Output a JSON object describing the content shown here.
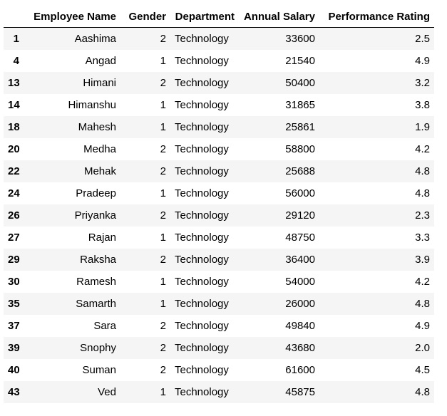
{
  "table": {
    "columns": {
      "index": "",
      "name": "Employee Name",
      "gender": "Gender",
      "department": "Department",
      "salary": "Annual Salary",
      "rating": "Performance Rating"
    },
    "rows": [
      {
        "index": "1",
        "name": "Aashima",
        "gender": "2",
        "department": "Technology",
        "salary": "33600",
        "rating": "2.5"
      },
      {
        "index": "4",
        "name": "Angad",
        "gender": "1",
        "department": "Technology",
        "salary": "21540",
        "rating": "4.9"
      },
      {
        "index": "13",
        "name": "Himani",
        "gender": "2",
        "department": "Technology",
        "salary": "50400",
        "rating": "3.2"
      },
      {
        "index": "14",
        "name": "Himanshu",
        "gender": "1",
        "department": "Technology",
        "salary": "31865",
        "rating": "3.8"
      },
      {
        "index": "18",
        "name": "Mahesh",
        "gender": "1",
        "department": "Technology",
        "salary": "25861",
        "rating": "1.9"
      },
      {
        "index": "20",
        "name": "Medha",
        "gender": "2",
        "department": "Technology",
        "salary": "58800",
        "rating": "4.2"
      },
      {
        "index": "22",
        "name": "Mehak",
        "gender": "2",
        "department": "Technology",
        "salary": "25688",
        "rating": "4.8"
      },
      {
        "index": "24",
        "name": "Pradeep",
        "gender": "1",
        "department": "Technology",
        "salary": "56000",
        "rating": "4.8"
      },
      {
        "index": "26",
        "name": "Priyanka",
        "gender": "2",
        "department": "Technology",
        "salary": "29120",
        "rating": "2.3"
      },
      {
        "index": "27",
        "name": "Rajan",
        "gender": "1",
        "department": "Technology",
        "salary": "48750",
        "rating": "3.3"
      },
      {
        "index": "29",
        "name": "Raksha",
        "gender": "2",
        "department": "Technology",
        "salary": "36400",
        "rating": "3.9"
      },
      {
        "index": "30",
        "name": "Ramesh",
        "gender": "1",
        "department": "Technology",
        "salary": "54000",
        "rating": "4.2"
      },
      {
        "index": "35",
        "name": "Samarth",
        "gender": "1",
        "department": "Technology",
        "salary": "26000",
        "rating": "4.8"
      },
      {
        "index": "37",
        "name": "Sara",
        "gender": "2",
        "department": "Technology",
        "salary": "49840",
        "rating": "4.9"
      },
      {
        "index": "39",
        "name": "Snophy",
        "gender": "2",
        "department": "Technology",
        "salary": "43680",
        "rating": "2.0"
      },
      {
        "index": "40",
        "name": "Suman",
        "gender": "2",
        "department": "Technology",
        "salary": "61600",
        "rating": "4.5"
      },
      {
        "index": "43",
        "name": "Ved",
        "gender": "1",
        "department": "Technology",
        "salary": "45875",
        "rating": "4.8"
      }
    ]
  },
  "colors": {
    "stripe": "#f5f5f5",
    "header_rule": "#000000",
    "text": "#000000"
  }
}
